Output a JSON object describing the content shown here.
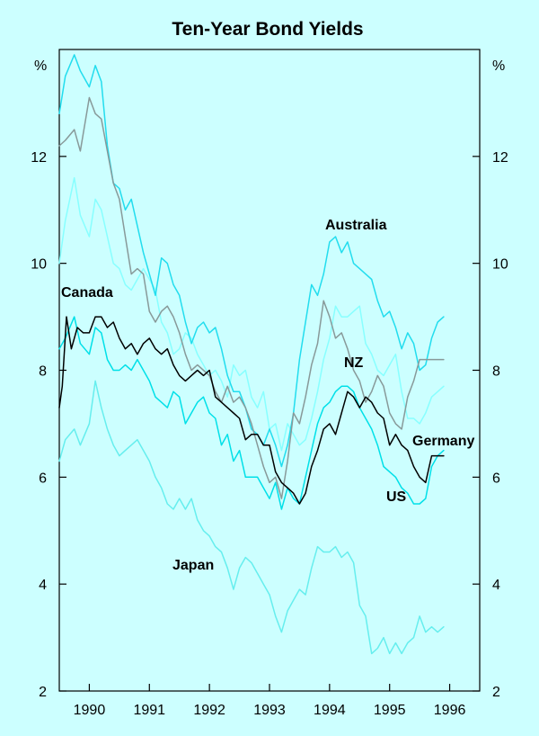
{
  "chart_data": {
    "type": "line",
    "title": "Ten-Year Bond Yields",
    "ylabel_left": "%",
    "ylabel_right": "%",
    "ylim": [
      2,
      14
    ],
    "yticks": [
      2,
      4,
      6,
      8,
      10,
      12
    ],
    "ytick_labels": [
      "2",
      "4",
      "6",
      "8",
      "10",
      "12"
    ],
    "xlim": [
      1989.5,
      1996.5
    ],
    "xtick_labels": [
      "1990",
      "1991",
      "1992",
      "1993",
      "1994",
      "1995",
      "1996"
    ],
    "xtick_positions": [
      1990,
      1991,
      1992,
      1993,
      1994,
      1995,
      1996
    ],
    "grid": false,
    "series": [
      {
        "name": "Australia",
        "color": "#22ddee",
        "x": [
          1989.5,
          1989.6,
          1989.75,
          1989.85,
          1990.0,
          1990.1,
          1990.2,
          1990.3,
          1990.4,
          1990.5,
          1990.6,
          1990.7,
          1990.8,
          1990.9,
          1991.0,
          1991.1,
          1991.2,
          1991.3,
          1991.4,
          1991.5,
          1991.6,
          1991.7,
          1991.8,
          1991.9,
          1992.0,
          1992.1,
          1992.2,
          1992.3,
          1992.4,
          1992.5,
          1992.6,
          1992.7,
          1992.8,
          1992.9,
          1993.0,
          1993.1,
          1993.2,
          1993.3,
          1993.4,
          1993.5,
          1993.6,
          1993.7,
          1993.8,
          1993.9,
          1994.0,
          1994.1,
          1994.2,
          1994.3,
          1994.4,
          1994.5,
          1994.6,
          1994.7,
          1994.8,
          1994.9,
          1995.0,
          1995.1,
          1995.2,
          1995.3,
          1995.4,
          1995.5,
          1995.6,
          1995.7,
          1995.8,
          1995.9
        ],
        "y": [
          12.8,
          13.5,
          13.9,
          13.6,
          13.3,
          13.7,
          13.4,
          12.2,
          11.5,
          11.4,
          11.0,
          11.2,
          10.7,
          10.2,
          9.8,
          9.4,
          10.1,
          10.0,
          9.6,
          9.4,
          8.9,
          8.5,
          8.8,
          8.9,
          8.7,
          8.8,
          8.4,
          7.9,
          7.6,
          7.6,
          7.3,
          6.9,
          6.8,
          6.6,
          6.9,
          6.6,
          6.2,
          6.6,
          7.2,
          8.2,
          8.9,
          9.6,
          9.4,
          9.8,
          10.4,
          10.5,
          10.2,
          10.4,
          10.0,
          9.9,
          9.8,
          9.7,
          9.3,
          9.0,
          9.1,
          8.8,
          8.4,
          8.7,
          8.5,
          8.0,
          8.1,
          8.6,
          8.9,
          9.0
        ]
      },
      {
        "name": "NZ",
        "color": "#889999",
        "x": [
          1989.5,
          1989.6,
          1989.75,
          1989.85,
          1990.0,
          1990.1,
          1990.2,
          1990.3,
          1990.4,
          1990.5,
          1990.6,
          1990.7,
          1990.8,
          1990.9,
          1991.0,
          1991.1,
          1991.2,
          1991.3,
          1991.4,
          1991.5,
          1991.6,
          1991.7,
          1991.8,
          1991.9,
          1992.0,
          1992.1,
          1992.2,
          1992.3,
          1992.4,
          1992.5,
          1992.6,
          1992.7,
          1992.8,
          1992.9,
          1993.0,
          1993.1,
          1993.2,
          1993.3,
          1993.4,
          1993.5,
          1993.6,
          1993.7,
          1993.8,
          1993.9,
          1994.0,
          1994.1,
          1994.2,
          1994.3,
          1994.4,
          1994.5,
          1994.6,
          1994.7,
          1994.8,
          1994.9,
          1995.0,
          1995.1,
          1995.2,
          1995.3,
          1995.4,
          1995.5,
          1995.6,
          1995.7,
          1995.8,
          1995.9
        ],
        "y": [
          12.2,
          12.3,
          12.5,
          12.1,
          13.1,
          12.8,
          12.7,
          12.1,
          11.5,
          11.2,
          10.5,
          9.8,
          9.9,
          9.8,
          9.1,
          8.9,
          9.1,
          9.2,
          9.0,
          8.7,
          8.3,
          8.0,
          8.1,
          8.0,
          7.9,
          7.6,
          7.4,
          7.7,
          7.4,
          7.5,
          7.3,
          7.0,
          6.6,
          6.2,
          5.9,
          6.0,
          5.6,
          6.3,
          7.2,
          7.0,
          7.5,
          8.1,
          8.5,
          9.3,
          9.0,
          8.6,
          8.7,
          8.4,
          8.0,
          7.8,
          7.4,
          7.6,
          7.9,
          7.7,
          7.2,
          7.0,
          6.9,
          7.5,
          7.8,
          8.2,
          8.2,
          8.2,
          8.2,
          8.2
        ]
      },
      {
        "name": "Canada",
        "color": "#000000",
        "x": [
          1989.5,
          1989.55,
          1989.62,
          1989.7,
          1989.8,
          1989.9,
          1990.0,
          1990.1,
          1990.2,
          1990.3,
          1990.4,
          1990.5,
          1990.6,
          1990.7,
          1990.8,
          1990.9,
          1991.0,
          1991.1,
          1991.2,
          1991.3,
          1991.4,
          1991.5,
          1991.6,
          1991.7,
          1991.8,
          1991.9,
          1992.0,
          1992.1,
          1992.2,
          1992.3,
          1992.4,
          1992.5,
          1992.6,
          1992.7,
          1992.8,
          1992.9,
          1993.0,
          1993.1,
          1993.2,
          1993.3,
          1993.4,
          1993.5,
          1993.6,
          1993.7,
          1993.8,
          1993.9,
          1994.0,
          1994.1,
          1994.2,
          1994.3,
          1994.4,
          1994.5,
          1994.6,
          1994.7,
          1994.8,
          1994.9,
          1995.0,
          1995.1,
          1995.2,
          1995.3,
          1995.4,
          1995.5,
          1995.6,
          1995.7,
          1995.8,
          1995.9
        ],
        "y": [
          7.3,
          7.7,
          9.0,
          8.4,
          8.8,
          8.7,
          8.7,
          9.0,
          9.0,
          8.8,
          8.9,
          8.6,
          8.4,
          8.5,
          8.3,
          8.5,
          8.6,
          8.4,
          8.3,
          8.4,
          8.1,
          7.9,
          7.8,
          7.9,
          8.0,
          7.9,
          8.0,
          7.5,
          7.4,
          7.3,
          7.2,
          7.1,
          6.7,
          6.8,
          6.8,
          6.6,
          6.6,
          6.1,
          5.9,
          5.8,
          5.7,
          5.5,
          5.7,
          6.2,
          6.5,
          6.9,
          7.0,
          6.8,
          7.2,
          7.6,
          7.5,
          7.3,
          7.5,
          7.4,
          7.2,
          7.1,
          6.6,
          6.8,
          6.6,
          6.5,
          6.2,
          6.0,
          5.9,
          6.4,
          6.4,
          6.4
        ]
      },
      {
        "name": "Germany",
        "color": "#88ffff",
        "x": [
          1989.5,
          1989.6,
          1989.75,
          1989.85,
          1990.0,
          1990.1,
          1990.2,
          1990.3,
          1990.4,
          1990.5,
          1990.6,
          1990.7,
          1990.8,
          1990.9,
          1991.0,
          1991.1,
          1991.2,
          1991.3,
          1991.4,
          1991.5,
          1991.6,
          1991.7,
          1991.8,
          1991.9,
          1992.0,
          1992.1,
          1992.2,
          1992.3,
          1992.4,
          1992.5,
          1992.6,
          1992.7,
          1992.8,
          1992.9,
          1993.0,
          1993.1,
          1993.2,
          1993.3,
          1993.4,
          1993.5,
          1993.6,
          1993.7,
          1993.8,
          1993.9,
          1994.0,
          1994.1,
          1994.2,
          1994.3,
          1994.4,
          1994.5,
          1994.6,
          1994.7,
          1994.8,
          1994.9,
          1995.0,
          1995.1,
          1995.2,
          1995.3,
          1995.4,
          1995.5,
          1995.6,
          1995.7,
          1995.8,
          1995.9
        ],
        "y": [
          10.0,
          10.8,
          11.6,
          10.9,
          10.5,
          11.2,
          11.0,
          10.5,
          10.0,
          9.9,
          9.6,
          9.5,
          9.7,
          9.9,
          9.7,
          9.5,
          8.9,
          8.7,
          8.3,
          8.4,
          8.7,
          8.6,
          8.3,
          8.1,
          7.9,
          8.0,
          7.8,
          7.5,
          8.1,
          7.9,
          8.0,
          7.5,
          7.3,
          7.6,
          6.9,
          7.0,
          6.5,
          7.0,
          6.8,
          6.6,
          6.7,
          7.1,
          7.6,
          8.2,
          8.6,
          9.2,
          9.0,
          9.0,
          9.1,
          9.2,
          8.5,
          8.3,
          8.0,
          7.9,
          8.1,
          8.3,
          7.6,
          7.1,
          7.1,
          7.0,
          7.2,
          7.5,
          7.6,
          7.7
        ]
      },
      {
        "name": "US",
        "color": "#00e0e8",
        "x": [
          1989.5,
          1989.6,
          1989.75,
          1989.85,
          1990.0,
          1990.1,
          1990.2,
          1990.3,
          1990.4,
          1990.5,
          1990.6,
          1990.7,
          1990.8,
          1990.9,
          1991.0,
          1991.1,
          1991.2,
          1991.3,
          1991.4,
          1991.5,
          1991.6,
          1991.7,
          1991.8,
          1991.9,
          1992.0,
          1992.1,
          1992.2,
          1992.3,
          1992.4,
          1992.5,
          1992.6,
          1992.7,
          1992.8,
          1992.9,
          1993.0,
          1993.1,
          1993.2,
          1993.3,
          1993.4,
          1993.5,
          1993.6,
          1993.7,
          1993.8,
          1993.9,
          1994.0,
          1994.1,
          1994.2,
          1994.3,
          1994.4,
          1994.5,
          1994.6,
          1994.7,
          1994.8,
          1994.9,
          1995.0,
          1995.1,
          1995.2,
          1995.3,
          1995.4,
          1995.5,
          1995.6,
          1995.7,
          1995.8,
          1995.9
        ],
        "y": [
          8.4,
          8.6,
          9.0,
          8.5,
          8.3,
          8.8,
          8.7,
          8.2,
          8.0,
          8.0,
          8.1,
          8.0,
          8.2,
          8.0,
          7.8,
          7.5,
          7.4,
          7.3,
          7.6,
          7.5,
          7.0,
          7.2,
          7.4,
          7.5,
          7.2,
          7.1,
          6.6,
          6.8,
          6.3,
          6.5,
          6.0,
          6.0,
          6.0,
          5.8,
          5.6,
          5.9,
          5.4,
          5.8,
          5.6,
          5.5,
          6.0,
          6.5,
          7.0,
          7.3,
          7.4,
          7.6,
          7.7,
          7.7,
          7.6,
          7.3,
          7.1,
          6.9,
          6.6,
          6.2,
          6.1,
          6.0,
          5.8,
          5.7,
          5.5,
          5.5,
          5.6,
          6.2,
          6.4,
          6.5
        ]
      },
      {
        "name": "Japan",
        "color": "#66eeee",
        "x": [
          1989.5,
          1989.6,
          1989.75,
          1989.85,
          1990.0,
          1990.1,
          1990.2,
          1990.3,
          1990.4,
          1990.5,
          1990.6,
          1990.7,
          1990.8,
          1990.9,
          1991.0,
          1991.1,
          1991.2,
          1991.3,
          1991.4,
          1991.5,
          1991.6,
          1991.7,
          1991.8,
          1991.9,
          1992.0,
          1992.1,
          1992.2,
          1992.3,
          1992.4,
          1992.5,
          1992.6,
          1992.7,
          1992.8,
          1992.9,
          1993.0,
          1993.1,
          1993.2,
          1993.3,
          1993.4,
          1993.5,
          1993.6,
          1993.7,
          1993.8,
          1993.9,
          1994.0,
          1994.1,
          1994.2,
          1994.3,
          1994.4,
          1994.5,
          1994.6,
          1994.7,
          1994.8,
          1994.9,
          1995.0,
          1995.1,
          1995.2,
          1995.3,
          1995.4,
          1995.5,
          1995.6,
          1995.7,
          1995.8,
          1995.9
        ],
        "y": [
          6.3,
          6.7,
          6.9,
          6.6,
          7.0,
          7.8,
          7.3,
          6.9,
          6.6,
          6.4,
          6.5,
          6.6,
          6.7,
          6.5,
          6.3,
          6.0,
          5.8,
          5.5,
          5.4,
          5.6,
          5.4,
          5.6,
          5.2,
          5.0,
          4.9,
          4.7,
          4.6,
          4.3,
          3.9,
          4.3,
          4.5,
          4.4,
          4.2,
          4.0,
          3.8,
          3.4,
          3.1,
          3.5,
          3.7,
          3.9,
          3.8,
          4.3,
          4.7,
          4.6,
          4.6,
          4.7,
          4.5,
          4.6,
          4.4,
          3.6,
          3.4,
          2.7,
          2.8,
          3.0,
          2.7,
          2.9,
          2.7,
          2.9,
          3.0,
          3.4,
          3.1,
          3.2,
          3.1,
          3.2
        ]
      }
    ],
    "series_labels": [
      {
        "text": "Australia",
        "series": "Australia"
      },
      {
        "text": "NZ",
        "series": "NZ"
      },
      {
        "text": "Canada",
        "series": "Canada"
      },
      {
        "text": "Germany",
        "series": "Germany"
      },
      {
        "text": "US",
        "series": "US"
      },
      {
        "text": "Japan",
        "series": "Japan"
      }
    ]
  }
}
